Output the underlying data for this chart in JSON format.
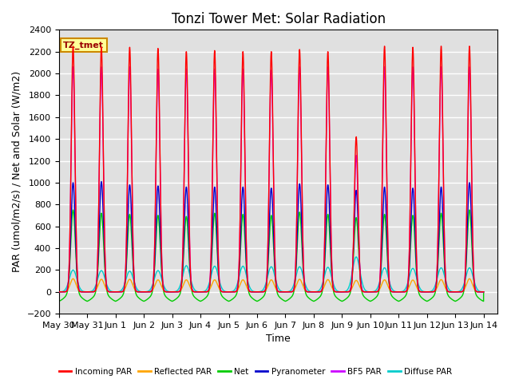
{
  "title": "Tonzi Tower Met: Solar Radiation",
  "ylabel": "PAR (umol/m2/s) / Net and Solar (W/m2)",
  "xlabel": "Time",
  "annotation": "TZ_tmet",
  "ylim": [
    -200,
    2400
  ],
  "background_color": "#e0e0e0",
  "grid_color": "white",
  "title_fontsize": 12,
  "label_fontsize": 9,
  "tick_label_fontsize": 8,
  "figsize": [
    6.4,
    4.8
  ],
  "dpi": 100,
  "series": {
    "incoming_par": {
      "color": "#ff0000",
      "label": "Incoming PAR"
    },
    "reflected_par": {
      "color": "#ffa500",
      "label": "Reflected PAR"
    },
    "net": {
      "color": "#00cc00",
      "label": "Net"
    },
    "pyranometer": {
      "color": "#0000cc",
      "label": "Pyranometer"
    },
    "bf5_par": {
      "color": "#cc00ff",
      "label": "BF5 PAR"
    },
    "diffuse_par": {
      "color": "#00cccc",
      "label": "Diffuse PAR"
    }
  },
  "xticks_labels": [
    "May 30",
    "May 31",
    "Jun 1",
    "Jun 2",
    "Jun 3",
    "Jun 4",
    "Jun 5",
    "Jun 6",
    "Jun 7",
    "Jun 8",
    "Jun 9",
    "Jun 10",
    "Jun 11",
    "Jun 12",
    "Jun 13",
    "Jun 14"
  ],
  "xticks_positions": [
    0,
    1,
    2,
    3,
    4,
    5,
    6,
    7,
    8,
    9,
    10,
    11,
    12,
    13,
    14,
    15
  ],
  "num_days": 15,
  "samples_per_day": 480,
  "inc_peaks": [
    2250,
    2240,
    2240,
    2230,
    2200,
    2210,
    2200,
    2200,
    2220,
    2200,
    1420,
    2250,
    2240,
    2250,
    2250
  ],
  "bf5_peaks": [
    2060,
    2060,
    2060,
    2040,
    2040,
    2040,
    2040,
    2030,
    2060,
    2060,
    1250,
    2060,
    2060,
    2060,
    2060
  ],
  "pyrano_peaks": [
    1000,
    1010,
    980,
    970,
    960,
    960,
    960,
    950,
    990,
    980,
    930,
    960,
    950,
    960,
    1000
  ],
  "net_peaks": [
    750,
    720,
    710,
    700,
    690,
    720,
    710,
    700,
    730,
    710,
    680,
    710,
    700,
    720,
    750
  ],
  "diffuse_peaks": [
    200,
    195,
    190,
    195,
    240,
    235,
    235,
    230,
    230,
    225,
    320,
    220,
    215,
    220,
    220
  ],
  "ref_peaks": [
    120,
    115,
    115,
    110,
    110,
    110,
    110,
    110,
    115,
    112,
    105,
    110,
    108,
    112,
    120
  ]
}
